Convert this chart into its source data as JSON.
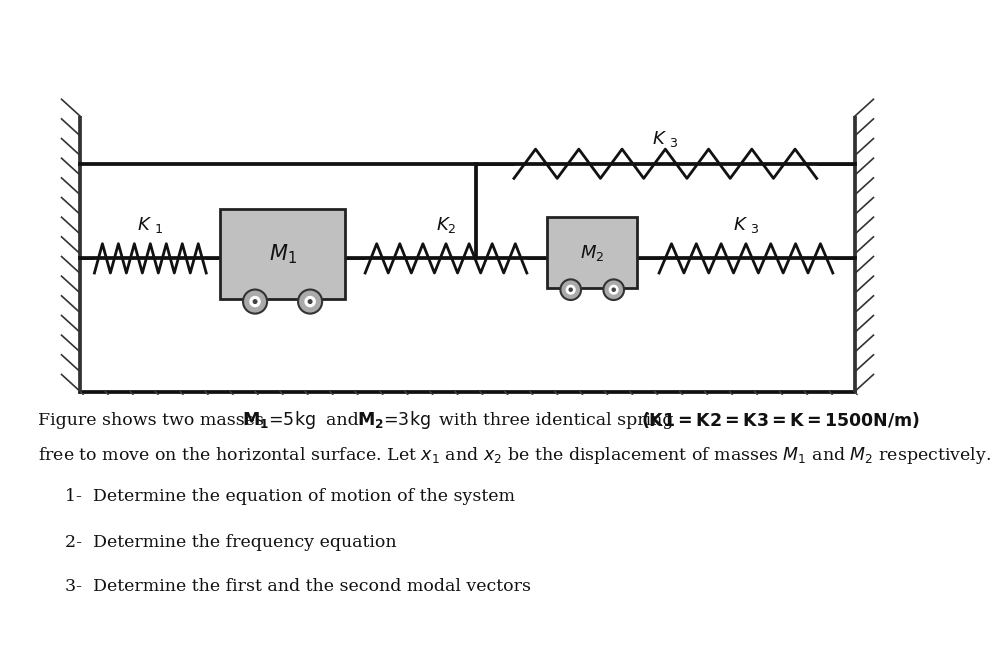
{
  "fig_bg": "#ffffff",
  "diagram_bg": "#ffffff",
  "wall_hatch_color": "#333333",
  "spring_color": "#111111",
  "mass_color": "#c0c0c0",
  "mass_edge_color": "#222222",
  "line_color": "#111111",
  "text_color": "#111111",
  "lw_main": 2.2,
  "lw_spring": 2.0,
  "K1_label": "K 1",
  "K2_label": "K2",
  "K3_top_label": "K 3",
  "K3_bot_label": "K 3",
  "M1_label": "M_1",
  "M2_label": "M_2",
  "line1a": "Figure shows two masses ",
  "line1b": "M₁=5kg",
  "line1c": "  and ",
  "line1d": "M₂=3kg",
  "line1e": "  with three identical spring ",
  "line1f": "(K1=K2=K3=K=1500N/m)",
  "line2": "free to move on the horizontal surface. Let x₁ and x₂ be the displacement of masses M₁ and M₂ respectively.",
  "item1": "1-  Determine the equation of motion of the system",
  "item2": "2-  Determine the frequency equation",
  "item3": "3-  Determine the first and the second modal vectors"
}
